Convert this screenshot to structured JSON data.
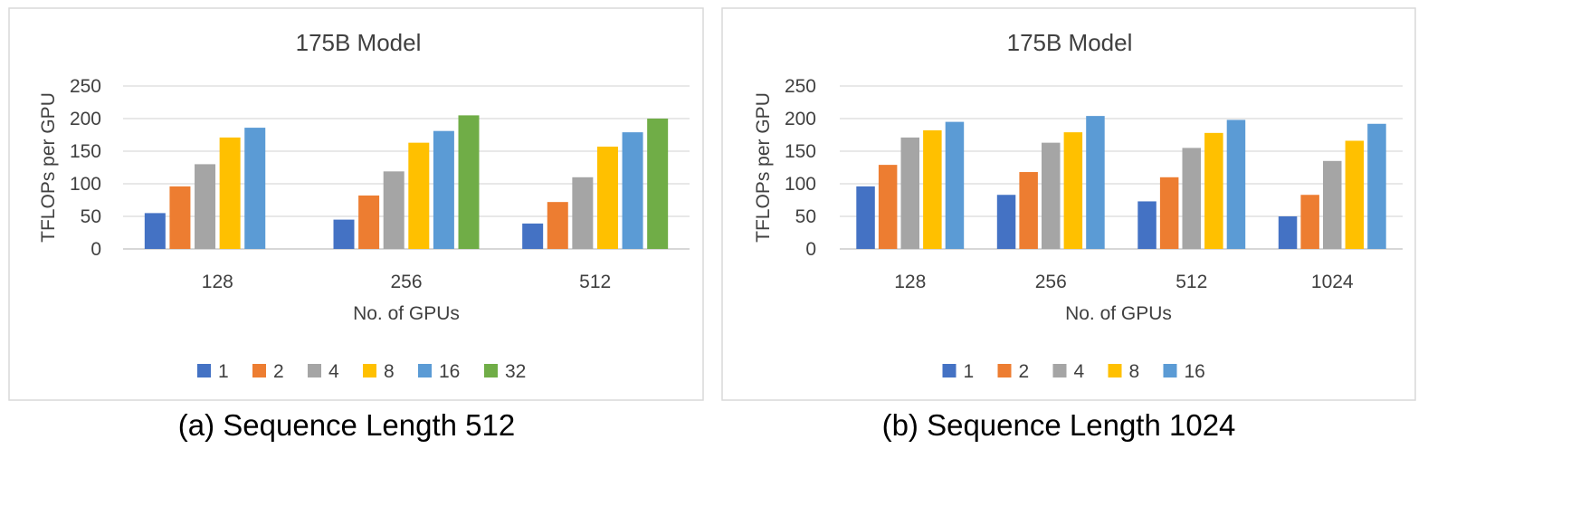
{
  "colors": {
    "1": "#4472C4",
    "2": "#ED7D31",
    "4": "#A5A5A5",
    "8": "#FFC000",
    "16": "#5B9BD5",
    "32": "#70AD47"
  },
  "chart_data": [
    {
      "type": "bar",
      "title": "175B Model",
      "caption": "(a) Sequence Length 512",
      "xlabel": "No. of GPUs",
      "ylabel": "TFLOPs per GPU",
      "ylim": [
        0,
        250
      ],
      "yticks": [
        0,
        50,
        100,
        150,
        200,
        250
      ],
      "categories": [
        "128",
        "256",
        "512"
      ],
      "legend_position": "bottom",
      "grid": true,
      "series": [
        {
          "name": "1",
          "values": [
            55,
            45,
            39
          ]
        },
        {
          "name": "2",
          "values": [
            96,
            82,
            72
          ]
        },
        {
          "name": "4",
          "values": [
            130,
            119,
            110
          ]
        },
        {
          "name": "8",
          "values": [
            171,
            163,
            157
          ]
        },
        {
          "name": "16",
          "values": [
            186,
            181,
            179
          ]
        },
        {
          "name": "32",
          "values": [
            null,
            205,
            200
          ]
        }
      ]
    },
    {
      "type": "bar",
      "title": "175B Model",
      "caption": "(b) Sequence Length 1024",
      "xlabel": "No. of GPUs",
      "ylabel": "TFLOPs per GPU",
      "ylim": [
        0,
        250
      ],
      "yticks": [
        0,
        50,
        100,
        150,
        200,
        250
      ],
      "categories": [
        "128",
        "256",
        "512",
        "1024"
      ],
      "legend_position": "bottom",
      "grid": true,
      "series": [
        {
          "name": "1",
          "values": [
            96,
            83,
            73,
            50
          ]
        },
        {
          "name": "2",
          "values": [
            129,
            118,
            110,
            83
          ]
        },
        {
          "name": "4",
          "values": [
            171,
            163,
            155,
            135
          ]
        },
        {
          "name": "8",
          "values": [
            182,
            179,
            178,
            166
          ]
        },
        {
          "name": "16",
          "values": [
            195,
            204,
            198,
            192
          ]
        }
      ]
    }
  ]
}
